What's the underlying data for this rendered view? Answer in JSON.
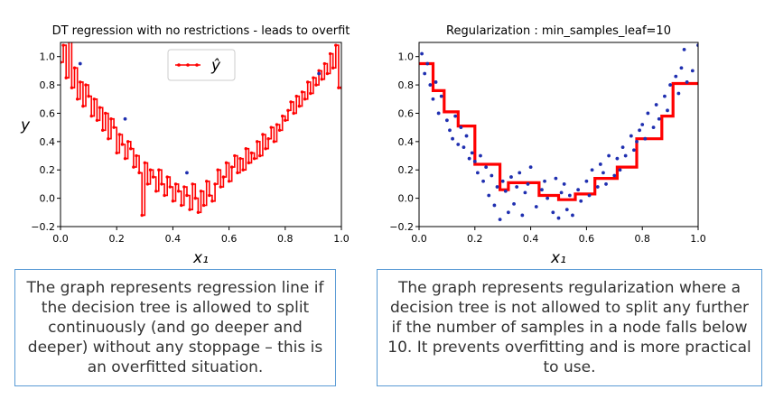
{
  "chart_data": [
    {
      "type": "line",
      "title": "DT regression with no restrictions - leads to overfit",
      "xlabel": "x₁",
      "ylabel": "y",
      "xlim": [
        0.0,
        1.0
      ],
      "ylim": [
        -0.2,
        1.1
      ],
      "xticks": [
        "0.0",
        "0.2",
        "0.4",
        "0.6",
        "0.8",
        "1.0"
      ],
      "yticks": [
        "−0.2",
        "0.0",
        "0.2",
        "0.4",
        "0.6",
        "0.8",
        "1.0"
      ],
      "legend": {
        "label": "ŷ",
        "placement": "top-center"
      },
      "series": [
        {
          "name": "ŷ",
          "color": "#ff0000",
          "style": "step-line-with-markers",
          "x": [
            0.0,
            0.01,
            0.02,
            0.03,
            0.04,
            0.05,
            0.06,
            0.07,
            0.08,
            0.09,
            0.1,
            0.11,
            0.12,
            0.13,
            0.14,
            0.15,
            0.16,
            0.17,
            0.18,
            0.19,
            0.2,
            0.21,
            0.22,
            0.23,
            0.24,
            0.25,
            0.26,
            0.27,
            0.28,
            0.29,
            0.3,
            0.31,
            0.32,
            0.33,
            0.34,
            0.35,
            0.36,
            0.37,
            0.38,
            0.39,
            0.4,
            0.41,
            0.42,
            0.43,
            0.44,
            0.45,
            0.46,
            0.47,
            0.48,
            0.49,
            0.5,
            0.51,
            0.52,
            0.53,
            0.54,
            0.55,
            0.56,
            0.57,
            0.58,
            0.59,
            0.6,
            0.61,
            0.62,
            0.63,
            0.64,
            0.65,
            0.66,
            0.67,
            0.68,
            0.69,
            0.7,
            0.71,
            0.72,
            0.73,
            0.74,
            0.75,
            0.76,
            0.77,
            0.78,
            0.79,
            0.8,
            0.81,
            0.82,
            0.83,
            0.84,
            0.85,
            0.86,
            0.87,
            0.88,
            0.89,
            0.9,
            0.91,
            0.92,
            0.93,
            0.94,
            0.95,
            0.96,
            0.97,
            0.98,
            0.99,
            1.0
          ],
          "y": [
            0.96,
            1.08,
            0.85,
            1.12,
            0.78,
            0.92,
            0.7,
            0.82,
            0.65,
            0.8,
            0.72,
            0.58,
            0.7,
            0.55,
            0.64,
            0.48,
            0.6,
            0.42,
            0.56,
            0.5,
            0.32,
            0.45,
            0.38,
            0.28,
            0.4,
            0.35,
            0.22,
            0.3,
            0.18,
            -0.12,
            0.25,
            0.1,
            0.2,
            0.15,
            0.05,
            0.2,
            0.1,
            0.02,
            0.15,
            0.08,
            -0.02,
            0.1,
            0.05,
            -0.05,
            0.08,
            0.02,
            -0.08,
            0.1,
            0.0,
            -0.1,
            0.05,
            -0.05,
            0.12,
            0.02,
            -0.02,
            0.1,
            0.2,
            0.08,
            0.15,
            0.25,
            0.12,
            0.22,
            0.3,
            0.18,
            0.28,
            0.2,
            0.35,
            0.25,
            0.32,
            0.28,
            0.4,
            0.3,
            0.45,
            0.35,
            0.42,
            0.5,
            0.4,
            0.52,
            0.48,
            0.58,
            0.55,
            0.62,
            0.68,
            0.6,
            0.72,
            0.65,
            0.75,
            0.7,
            0.82,
            0.74,
            0.85,
            0.8,
            0.9,
            0.84,
            0.95,
            0.88,
            1.02,
            0.92,
            1.08,
            0.78,
            0.78
          ]
        },
        {
          "name": "",
          "color": "#1f2fb0",
          "style": "points",
          "x": [
            0.07,
            0.23,
            0.45,
            0.92
          ],
          "y": [
            0.95,
            0.56,
            0.18,
            0.88
          ]
        }
      ]
    },
    {
      "type": "line",
      "title": "Regularization : min_samples_leaf=10",
      "xlabel": "x₁",
      "ylabel": "",
      "xlim": [
        0.0,
        1.0
      ],
      "ylim": [
        -0.2,
        1.1
      ],
      "xticks": [
        "0.0",
        "0.2",
        "0.4",
        "0.6",
        "0.8",
        "1.0"
      ],
      "yticks": [
        "−0.2",
        "0.0",
        "0.2",
        "0.4",
        "0.6",
        "0.8",
        "1.0"
      ],
      "series": [
        {
          "name": "",
          "color": "#ff0000",
          "style": "step",
          "x": [
            0.0,
            0.05,
            0.05,
            0.09,
            0.09,
            0.14,
            0.14,
            0.2,
            0.2,
            0.29,
            0.29,
            0.32,
            0.32,
            0.43,
            0.43,
            0.5,
            0.5,
            0.56,
            0.56,
            0.63,
            0.63,
            0.71,
            0.71,
            0.78,
            0.78,
            0.87,
            0.87,
            0.91,
            0.91,
            1.0
          ],
          "y": [
            0.95,
            0.95,
            0.76,
            0.76,
            0.61,
            0.61,
            0.51,
            0.51,
            0.24,
            0.24,
            0.06,
            0.06,
            0.11,
            0.11,
            0.02,
            0.02,
            -0.01,
            -0.01,
            0.03,
            0.03,
            0.14,
            0.14,
            0.22,
            0.22,
            0.42,
            0.42,
            0.58,
            0.58,
            0.81,
            0.81
          ]
        },
        {
          "name": "",
          "color": "#1f2fb0",
          "style": "points",
          "x": [
            0.01,
            0.02,
            0.03,
            0.04,
            0.05,
            0.06,
            0.07,
            0.08,
            0.1,
            0.11,
            0.12,
            0.13,
            0.14,
            0.15,
            0.16,
            0.17,
            0.18,
            0.19,
            0.2,
            0.21,
            0.22,
            0.23,
            0.24,
            0.25,
            0.26,
            0.27,
            0.28,
            0.29,
            0.3,
            0.31,
            0.32,
            0.33,
            0.34,
            0.35,
            0.36,
            0.37,
            0.38,
            0.39,
            0.4,
            0.42,
            0.44,
            0.45,
            0.46,
            0.48,
            0.49,
            0.5,
            0.51,
            0.52,
            0.53,
            0.54,
            0.55,
            0.57,
            0.58,
            0.6,
            0.61,
            0.62,
            0.64,
            0.65,
            0.66,
            0.67,
            0.68,
            0.7,
            0.71,
            0.72,
            0.73,
            0.74,
            0.76,
            0.77,
            0.78,
            0.79,
            0.8,
            0.81,
            0.82,
            0.84,
            0.85,
            0.86,
            0.88,
            0.89,
            0.9,
            0.92,
            0.93,
            0.94,
            0.95,
            0.96,
            0.98,
            1.0
          ],
          "y": [
            1.02,
            0.88,
            0.95,
            0.8,
            0.7,
            0.82,
            0.6,
            0.72,
            0.55,
            0.48,
            0.42,
            0.58,
            0.38,
            0.5,
            0.36,
            0.44,
            0.28,
            0.32,
            0.26,
            0.18,
            0.3,
            0.12,
            0.22,
            0.02,
            0.16,
            -0.05,
            0.08,
            -0.15,
            0.12,
            0.05,
            -0.1,
            0.15,
            -0.04,
            0.08,
            0.18,
            -0.12,
            0.04,
            0.1,
            0.22,
            -0.06,
            0.06,
            0.12,
            0.0,
            -0.1,
            0.14,
            -0.14,
            0.04,
            0.1,
            -0.08,
            0.02,
            -0.12,
            0.06,
            -0.02,
            0.12,
            0.02,
            0.2,
            0.08,
            0.24,
            0.18,
            0.1,
            0.3,
            0.16,
            0.28,
            0.2,
            0.36,
            0.3,
            0.44,
            0.34,
            0.4,
            0.48,
            0.52,
            0.42,
            0.6,
            0.5,
            0.66,
            0.56,
            0.72,
            0.62,
            0.8,
            0.86,
            0.74,
            0.92,
            1.05,
            0.82,
            0.9,
            1.08
          ]
        }
      ]
    }
  ],
  "captions": {
    "left": "The graph represents regression line if the decision tree is allowed to split continuously (and go deeper and deeper) without any stoppage – this is an overfitted situation.",
    "right": "The graph represents regularization where a decision tree is not allowed to split any further if the number of samples in a node falls below 10. It prevents overfitting and is more practical to use."
  }
}
